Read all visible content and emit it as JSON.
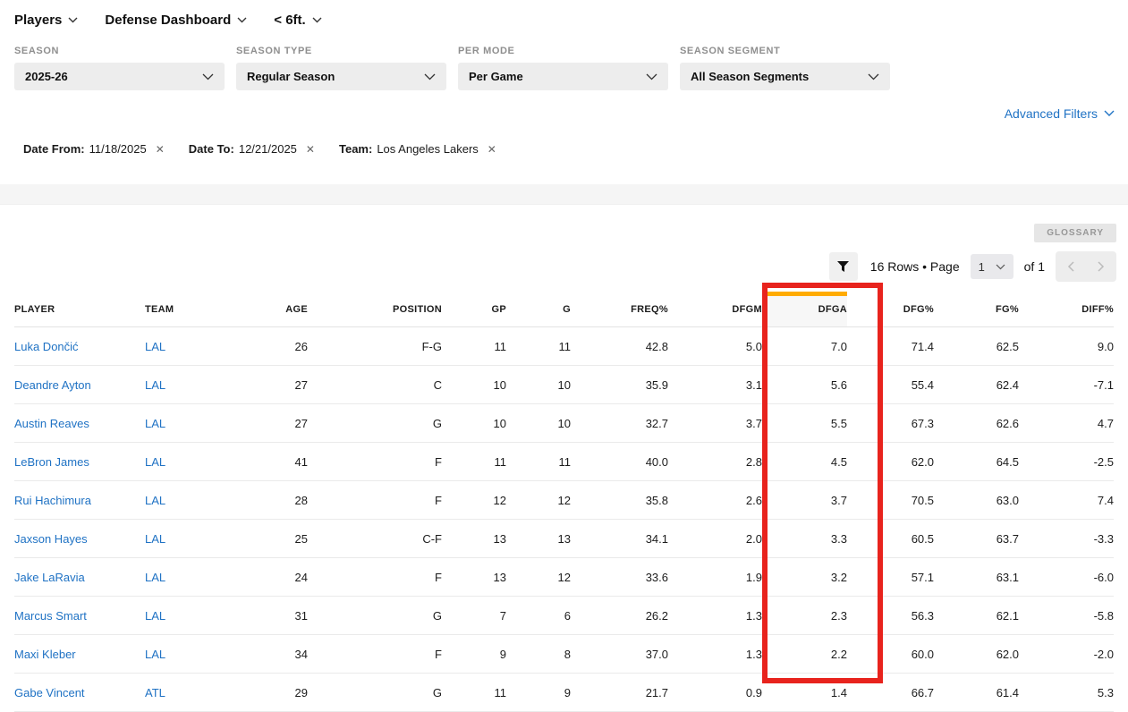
{
  "nav": {
    "items": [
      {
        "label": "Players"
      },
      {
        "label": "Defense Dashboard"
      },
      {
        "label": "< 6ft."
      }
    ]
  },
  "filters": [
    {
      "label": "SEASON",
      "value": "2025-26"
    },
    {
      "label": "SEASON TYPE",
      "value": "Regular Season"
    },
    {
      "label": "PER MODE",
      "value": "Per Game"
    },
    {
      "label": "SEASON SEGMENT",
      "value": "All Season Segments"
    }
  ],
  "advanced_filters_label": "Advanced Filters",
  "chips": [
    {
      "label": "Date From:",
      "value": "11/18/2025"
    },
    {
      "label": "Date To:",
      "value": "12/21/2025"
    },
    {
      "label": "Team:",
      "value": "Los Angeles Lakers"
    }
  ],
  "toolbar": {
    "glossary_label": "GLOSSARY",
    "rows_text": "16 Rows • Page",
    "page_value": "1",
    "of_text": "of 1"
  },
  "table": {
    "columns": [
      "PLAYER",
      "TEAM",
      "AGE",
      "POSITION",
      "GP",
      "G",
      "FREQ%",
      "DFGM",
      "DFGA",
      "DFG%",
      "FG%",
      "DIFF%"
    ],
    "highlighted_column": "DFGA",
    "rows": [
      {
        "player": "Luka Dončić",
        "team": "LAL",
        "age": "26",
        "position": "F-G",
        "gp": "11",
        "g": "11",
        "freq": "42.8",
        "dfgm": "5.0",
        "dfga": "7.0",
        "dfg": "71.4",
        "fg": "62.5",
        "diff": "9.0"
      },
      {
        "player": "Deandre Ayton",
        "team": "LAL",
        "age": "27",
        "position": "C",
        "gp": "10",
        "g": "10",
        "freq": "35.9",
        "dfgm": "3.1",
        "dfga": "5.6",
        "dfg": "55.4",
        "fg": "62.4",
        "diff": "-7.1"
      },
      {
        "player": "Austin Reaves",
        "team": "LAL",
        "age": "27",
        "position": "G",
        "gp": "10",
        "g": "10",
        "freq": "32.7",
        "dfgm": "3.7",
        "dfga": "5.5",
        "dfg": "67.3",
        "fg": "62.6",
        "diff": "4.7"
      },
      {
        "player": "LeBron James",
        "team": "LAL",
        "age": "41",
        "position": "F",
        "gp": "11",
        "g": "11",
        "freq": "40.0",
        "dfgm": "2.8",
        "dfga": "4.5",
        "dfg": "62.0",
        "fg": "64.5",
        "diff": "-2.5"
      },
      {
        "player": "Rui Hachimura",
        "team": "LAL",
        "age": "28",
        "position": "F",
        "gp": "12",
        "g": "12",
        "freq": "35.8",
        "dfgm": "2.6",
        "dfga": "3.7",
        "dfg": "70.5",
        "fg": "63.0",
        "diff": "7.4"
      },
      {
        "player": "Jaxson Hayes",
        "team": "LAL",
        "age": "25",
        "position": "C-F",
        "gp": "13",
        "g": "13",
        "freq": "34.1",
        "dfgm": "2.0",
        "dfga": "3.3",
        "dfg": "60.5",
        "fg": "63.7",
        "diff": "-3.3"
      },
      {
        "player": "Jake LaRavia",
        "team": "LAL",
        "age": "24",
        "position": "F",
        "gp": "13",
        "g": "12",
        "freq": "33.6",
        "dfgm": "1.9",
        "dfga": "3.2",
        "dfg": "57.1",
        "fg": "63.1",
        "diff": "-6.0"
      },
      {
        "player": "Marcus Smart",
        "team": "LAL",
        "age": "31",
        "position": "G",
        "gp": "7",
        "g": "6",
        "freq": "26.2",
        "dfgm": "1.3",
        "dfga": "2.3",
        "dfg": "56.3",
        "fg": "62.1",
        "diff": "-5.8"
      },
      {
        "player": "Maxi Kleber",
        "team": "LAL",
        "age": "34",
        "position": "F",
        "gp": "9",
        "g": "8",
        "freq": "37.0",
        "dfgm": "1.3",
        "dfga": "2.2",
        "dfg": "60.0",
        "fg": "62.0",
        "diff": "-2.0"
      },
      {
        "player": "Gabe Vincent",
        "team": "ATL",
        "age": "29",
        "position": "G",
        "gp": "11",
        "g": "9",
        "freq": "21.7",
        "dfgm": "0.9",
        "dfga": "1.4",
        "dfg": "66.7",
        "fg": "61.4",
        "diff": "5.3"
      }
    ]
  },
  "colors": {
    "link_blue": "#1f72c4",
    "sort_indicator_orange": "#ffab00",
    "annotation_red": "#e8231d",
    "band_gray": "#f5f5f5"
  }
}
